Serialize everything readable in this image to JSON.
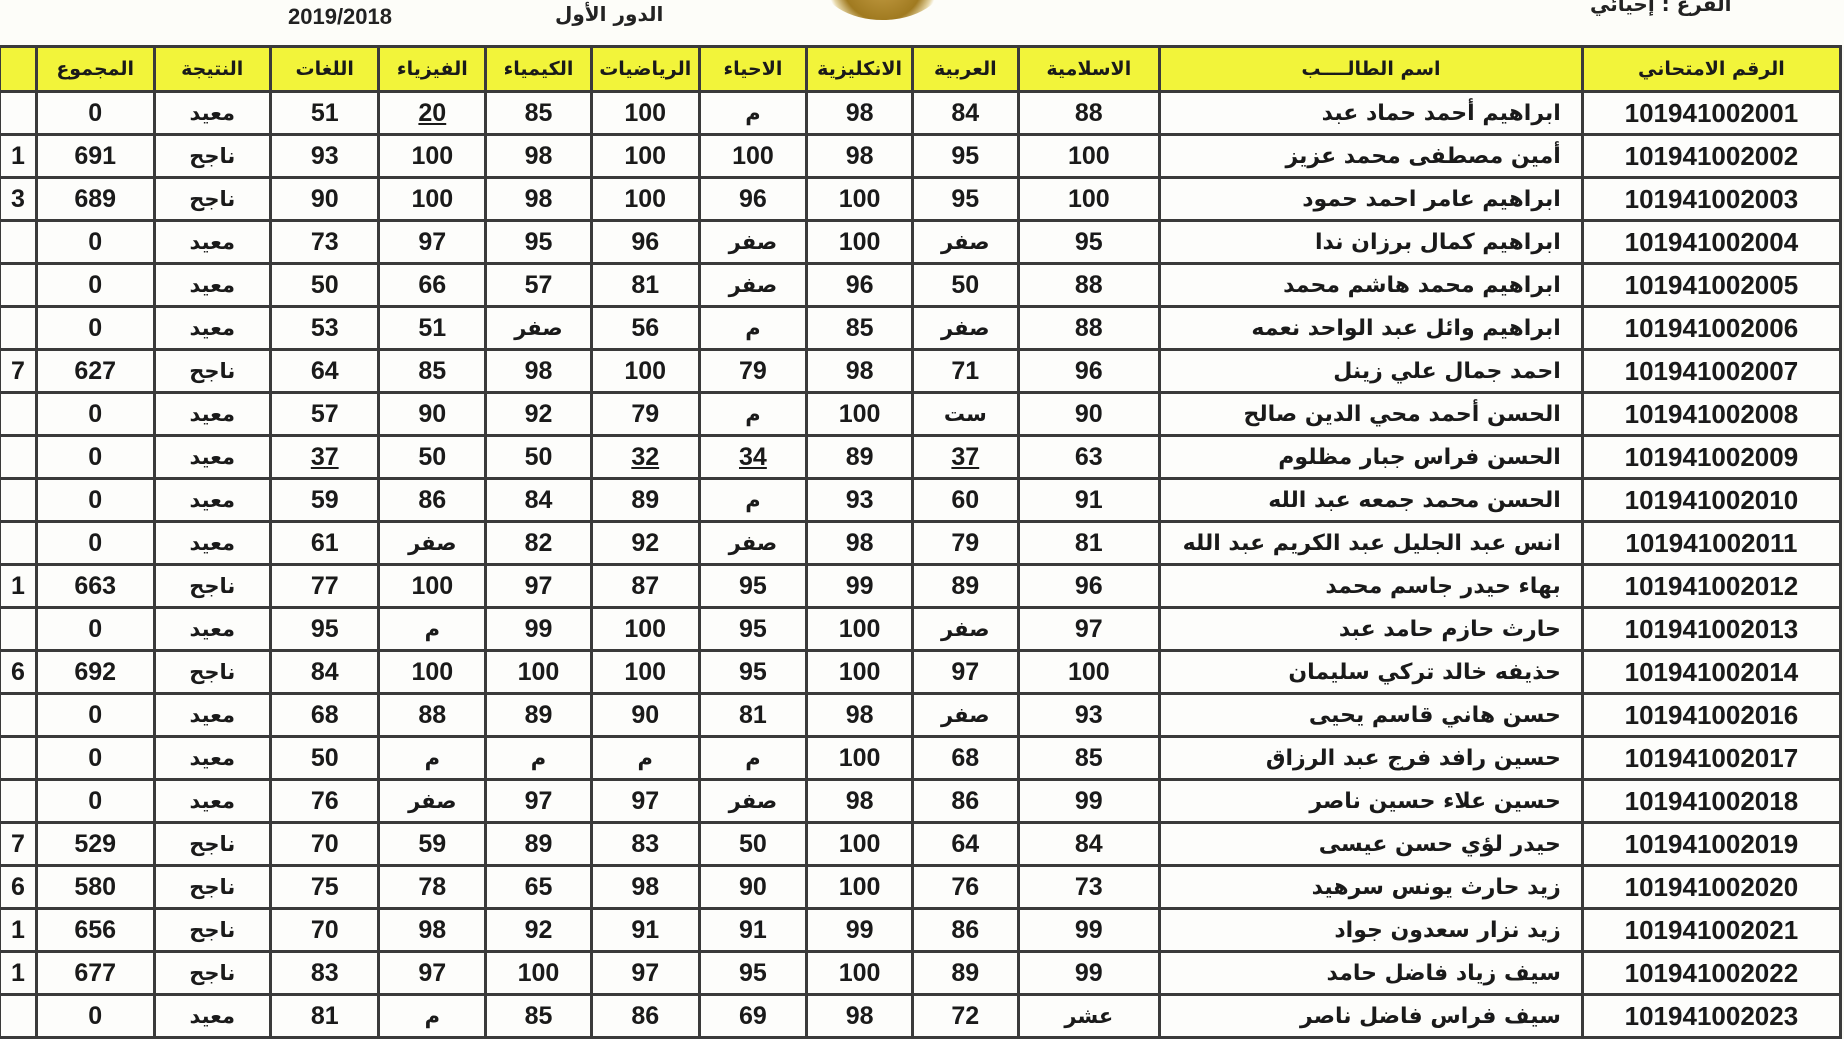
{
  "header": {
    "branch": "الفرع : إحيائي",
    "round": "الدور الأول",
    "year": "2019/2018"
  },
  "columns": [
    "الرقم الامتحاني",
    "اسم الطالــــب",
    "الاسلامية",
    "العربية",
    "الانكليزية",
    "الاحياء",
    "الرياضيات",
    "الكيمياء",
    "الفيزياء",
    "اللغات",
    "النتيجة",
    "المجموع",
    ""
  ],
  "colors": {
    "header_bg": "#f2f43a",
    "border": "#3a3a3a"
  },
  "rows": [
    {
      "cells": [
        "101941002001",
        "ابراهيم أحمد حماد عبد",
        "88",
        "84",
        "98",
        "م",
        "100",
        "85",
        "20",
        "51",
        "معيد",
        "0",
        ""
      ],
      "underlined": [
        8
      ]
    },
    {
      "cells": [
        "101941002002",
        "أمين مصطفى محمد عزيز",
        "100",
        "95",
        "98",
        "100",
        "100",
        "98",
        "100",
        "93",
        "ناجح",
        "691",
        "1"
      ],
      "underlined": []
    },
    {
      "cells": [
        "101941002003",
        "ابراهيم عامر احمد حمود",
        "100",
        "95",
        "100",
        "96",
        "100",
        "98",
        "100",
        "90",
        "ناجح",
        "689",
        "3"
      ],
      "underlined": []
    },
    {
      "cells": [
        "101941002004",
        "ابراهيم كمال برزان ندا",
        "95",
        "صفر",
        "100",
        "صفر",
        "96",
        "95",
        "97",
        "73",
        "معيد",
        "0",
        ""
      ],
      "underlined": []
    },
    {
      "cells": [
        "101941002005",
        "ابراهيم محمد هاشم محمد",
        "88",
        "50",
        "96",
        "صفر",
        "81",
        "57",
        "66",
        "50",
        "معيد",
        "0",
        ""
      ],
      "underlined": []
    },
    {
      "cells": [
        "101941002006",
        "ابراهيم وائل عبد الواحد نعمه",
        "88",
        "صفر",
        "85",
        "م",
        "56",
        "صفر",
        "51",
        "53",
        "معيد",
        "0",
        ""
      ],
      "underlined": []
    },
    {
      "cells": [
        "101941002007",
        "احمد جمال علي زينل",
        "96",
        "71",
        "98",
        "79",
        "100",
        "98",
        "85",
        "64",
        "ناجح",
        "627",
        "7"
      ],
      "underlined": []
    },
    {
      "cells": [
        "101941002008",
        "الحسن أحمد محي الدين صالح",
        "90",
        "ست",
        "100",
        "م",
        "79",
        "92",
        "90",
        "57",
        "معيد",
        "0",
        ""
      ],
      "underlined": []
    },
    {
      "cells": [
        "101941002009",
        "الحسن فراس جبار مظلوم",
        "63",
        "37",
        "89",
        "34",
        "32",
        "50",
        "50",
        "37",
        "معيد",
        "0",
        ""
      ],
      "underlined": [
        3,
        5,
        6,
        9
      ]
    },
    {
      "cells": [
        "101941002010",
        "الحسن محمد جمعه عبد الله",
        "91",
        "60",
        "93",
        "م",
        "89",
        "84",
        "86",
        "59",
        "معيد",
        "0",
        ""
      ],
      "underlined": []
    },
    {
      "cells": [
        "101941002011",
        "انس عبد الجليل عبد الكريم عبد الله",
        "81",
        "79",
        "98",
        "صفر",
        "92",
        "82",
        "صفر",
        "61",
        "معيد",
        "0",
        ""
      ],
      "underlined": []
    },
    {
      "cells": [
        "101941002012",
        "بهاء حيدر جاسم محمد",
        "96",
        "89",
        "99",
        "95",
        "87",
        "97",
        "100",
        "77",
        "ناجح",
        "663",
        "1"
      ],
      "underlined": []
    },
    {
      "cells": [
        "101941002013",
        "حارث حازم حامد عبد",
        "97",
        "صفر",
        "100",
        "95",
        "100",
        "99",
        "م",
        "95",
        "معيد",
        "0",
        ""
      ],
      "underlined": []
    },
    {
      "cells": [
        "101941002014",
        "حذيفه خالد تركي سليمان",
        "100",
        "97",
        "100",
        "95",
        "100",
        "100",
        "100",
        "84",
        "ناجح",
        "692",
        "6"
      ],
      "underlined": []
    },
    {
      "cells": [
        "101941002016",
        "حسن هاني قاسم يحيى",
        "93",
        "صفر",
        "98",
        "81",
        "90",
        "89",
        "88",
        "68",
        "معيد",
        "0",
        ""
      ],
      "underlined": []
    },
    {
      "cells": [
        "101941002017",
        "حسين رافد فرج عبد الرزاق",
        "85",
        "68",
        "100",
        "م",
        "م",
        "م",
        "م",
        "50",
        "معيد",
        "0",
        ""
      ],
      "underlined": []
    },
    {
      "cells": [
        "101941002018",
        "حسين علاء حسين ناصر",
        "99",
        "86",
        "98",
        "صفر",
        "97",
        "97",
        "صفر",
        "76",
        "معيد",
        "0",
        ""
      ],
      "underlined": []
    },
    {
      "cells": [
        "101941002019",
        "حيدر لؤي حسن عيسى",
        "84",
        "64",
        "100",
        "50",
        "83",
        "89",
        "59",
        "70",
        "ناجح",
        "529",
        "7"
      ],
      "underlined": []
    },
    {
      "cells": [
        "101941002020",
        "زيد حارث يونس سرهيد",
        "73",
        "76",
        "100",
        "90",
        "98",
        "65",
        "78",
        "75",
        "ناجح",
        "580",
        "6"
      ],
      "underlined": []
    },
    {
      "cells": [
        "101941002021",
        "زيد نزار سعدون جواد",
        "99",
        "86",
        "99",
        "91",
        "91",
        "92",
        "98",
        "70",
        "ناجح",
        "656",
        "1"
      ],
      "underlined": []
    },
    {
      "cells": [
        "101941002022",
        "سيف زياد فاضل حامد",
        "99",
        "89",
        "100",
        "95",
        "97",
        "100",
        "97",
        "83",
        "ناجح",
        "677",
        "1"
      ],
      "underlined": []
    },
    {
      "cells": [
        "101941002023",
        "سيف فراس فاضل ناصر",
        "عشر",
        "72",
        "98",
        "69",
        "86",
        "85",
        "م",
        "81",
        "معيد",
        "0",
        ""
      ],
      "underlined": []
    }
  ]
}
